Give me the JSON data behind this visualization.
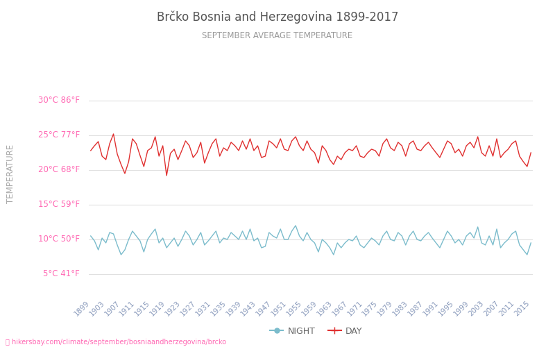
{
  "title": "Brčko Bosnia and Herzegovina 1899-2017",
  "subtitle": "SEPTEMBER AVERAGE TEMPERATURE",
  "ylabel": "TEMPERATURE",
  "ylabel_color": "#aaaaaa",
  "title_color": "#555555",
  "subtitle_color": "#999999",
  "background_color": "#ffffff",
  "grid_color": "#e0e0e0",
  "start_year": 1899,
  "end_year": 2015,
  "step": 4,
  "yticks_c": [
    5,
    10,
    15,
    20,
    25,
    30
  ],
  "yticks_f": [
    41,
    50,
    59,
    68,
    77,
    86
  ],
  "ylim": [
    2,
    33
  ],
  "day_color": "#e03030",
  "night_color": "#7bbccc",
  "label_color": "#ff69b4",
  "watermark": "hikersbay.com/climate/september/bosniaandherzegovina/brcko",
  "watermark_color": "#ff69b4",
  "legend_night": "NIGHT",
  "legend_day": "DAY",
  "day_temps": [
    22.8,
    23.5,
    24.1,
    22.0,
    21.5,
    23.8,
    25.2,
    22.3,
    20.8,
    19.5,
    21.2,
    24.5,
    23.8,
    22.1,
    20.5,
    22.8,
    23.2,
    24.8,
    22.0,
    23.5,
    19.2,
    22.4,
    23.0,
    21.5,
    22.8,
    24.2,
    23.5,
    21.8,
    22.5,
    24.0,
    21.0,
    22.5,
    23.8,
    24.5,
    22.0,
    23.2,
    22.8,
    24.0,
    23.5,
    22.8,
    24.2,
    23.0,
    24.5,
    22.8,
    23.5,
    21.8,
    22.0,
    24.2,
    23.8,
    23.2,
    24.5,
    23.0,
    22.8,
    24.2,
    24.8,
    23.5,
    22.8,
    24.2,
    23.0,
    22.5,
    21.0,
    23.5,
    22.8,
    21.5,
    20.8,
    22.0,
    21.5,
    22.5,
    23.0,
    22.8,
    23.5,
    22.0,
    21.8,
    22.5,
    23.0,
    22.8,
    22.0,
    23.8,
    24.5,
    23.2,
    22.8,
    24.0,
    23.5,
    22.0,
    23.8,
    24.2,
    23.0,
    22.8,
    23.5,
    24.0,
    23.2,
    22.5,
    21.8,
    23.0,
    24.2,
    23.8,
    22.5,
    23.0,
    22.0,
    23.5,
    24.0,
    23.2,
    24.8,
    22.5,
    22.0,
    23.5,
    22.0,
    24.5,
    21.8,
    22.5,
    23.0,
    23.8,
    24.2,
    22.0,
    21.2,
    20.5,
    22.5,
    23.0
  ],
  "night_temps": [
    10.5,
    9.8,
    8.5,
    10.2,
    9.5,
    11.0,
    10.8,
    9.2,
    7.8,
    8.5,
    10.0,
    11.2,
    10.5,
    9.8,
    8.2,
    10.0,
    10.8,
    11.5,
    9.5,
    10.2,
    8.8,
    9.5,
    10.2,
    9.0,
    10.0,
    11.2,
    10.5,
    9.2,
    10.0,
    11.0,
    9.2,
    9.8,
    10.5,
    11.2,
    9.5,
    10.2,
    10.0,
    11.0,
    10.5,
    10.0,
    11.2,
    10.0,
    11.5,
    9.8,
    10.2,
    8.8,
    9.0,
    11.0,
    10.5,
    10.2,
    11.5,
    10.0,
    10.0,
    11.2,
    12.0,
    10.5,
    9.8,
    11.0,
    10.0,
    9.5,
    8.2,
    10.0,
    9.5,
    8.8,
    7.8,
    9.5,
    8.8,
    9.5,
    10.0,
    9.8,
    10.5,
    9.2,
    8.8,
    9.5,
    10.2,
    9.8,
    9.2,
    10.5,
    11.2,
    10.0,
    9.8,
    11.0,
    10.5,
    9.2,
    10.5,
    11.2,
    10.0,
    9.8,
    10.5,
    11.0,
    10.2,
    9.5,
    8.8,
    10.0,
    11.2,
    10.5,
    9.5,
    10.0,
    9.2,
    10.5,
    11.0,
    10.2,
    11.8,
    9.5,
    9.2,
    10.5,
    9.2,
    11.5,
    8.8,
    9.5,
    10.0,
    10.8,
    11.2,
    9.2,
    8.5,
    7.8,
    9.5,
    10.2
  ]
}
